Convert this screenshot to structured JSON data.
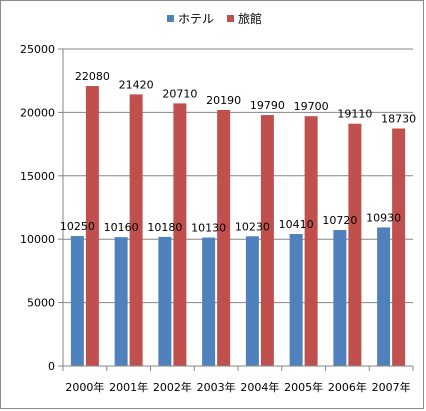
{
  "chart_data": {
    "type": "bar",
    "categories": [
      "2000年",
      "2001年",
      "2002年",
      "2003年",
      "2004年",
      "2005年",
      "2006年",
      "2007年"
    ],
    "series": [
      {
        "name": "ホテル",
        "color": "#4f81bd",
        "values": [
          10250,
          10160,
          10180,
          10130,
          10230,
          10410,
          10720,
          10930
        ]
      },
      {
        "name": "旅館",
        "color": "#c0504d",
        "values": [
          22080,
          21420,
          20710,
          20190,
          19790,
          19700,
          19110,
          18730
        ]
      }
    ],
    "title": "",
    "xlabel": "",
    "ylabel": "",
    "ylim": [
      0,
      25000
    ],
    "yticks": [
      0,
      5000,
      10000,
      15000,
      20000,
      25000
    ],
    "grid": true,
    "data_labels": true,
    "legend_position": "top"
  }
}
